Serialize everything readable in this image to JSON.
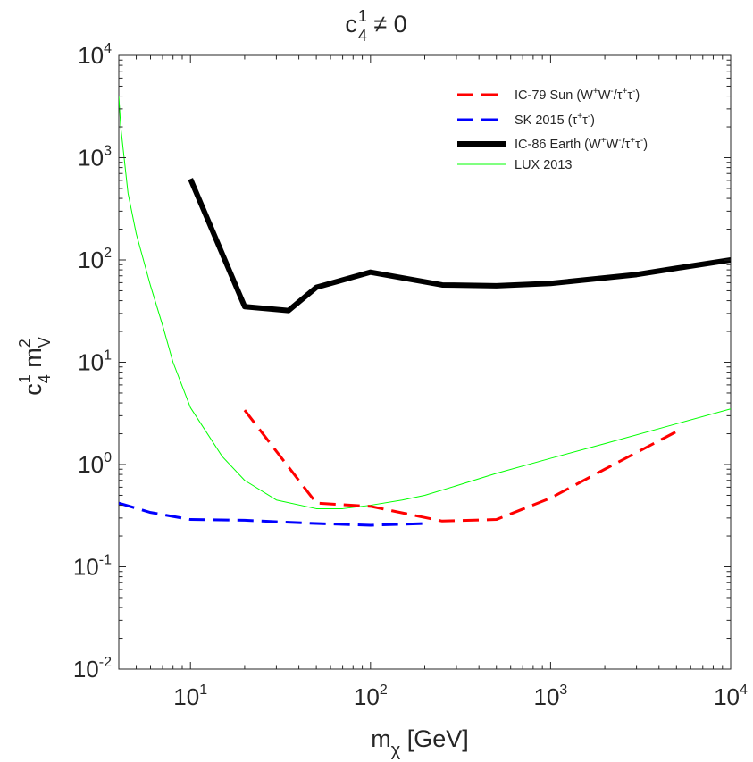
{
  "chart_data": {
    "type": "line",
    "title": {
      "base": "c",
      "sup": "1",
      "sub": "4",
      "rest": " ≠ 0"
    },
    "xlabel": {
      "base": "m",
      "sub": "χ",
      "rest": " [GeV]"
    },
    "ylabel": {
      "c": "c",
      "c_sup": "1",
      "c_sub": "4",
      "m": " m",
      "m_sup": "2",
      "m_sub": "V"
    },
    "xscale": "log",
    "yscale": "log",
    "xlim": [
      4,
      10000
    ],
    "ylim": [
      0.01,
      10000
    ],
    "xticks": [
      {
        "value": 10,
        "base": "10",
        "exp": "1"
      },
      {
        "value": 100,
        "base": "10",
        "exp": "2"
      },
      {
        "value": 1000,
        "base": "10",
        "exp": "3"
      },
      {
        "value": 10000,
        "base": "10",
        "exp": "4"
      }
    ],
    "yticks": [
      {
        "value": 0.01,
        "base": "10",
        "exp": "-2"
      },
      {
        "value": 0.1,
        "base": "10",
        "exp": "-1"
      },
      {
        "value": 1,
        "base": "10",
        "exp": "0"
      },
      {
        "value": 10,
        "base": "10",
        "exp": "1"
      },
      {
        "value": 100,
        "base": "10",
        "exp": "2"
      },
      {
        "value": 1000,
        "base": "10",
        "exp": "3"
      },
      {
        "value": 10000,
        "base": "10",
        "exp": "4"
      }
    ],
    "grid": false,
    "legend_position": "top-right",
    "series": [
      {
        "id": "ic79",
        "name": "IC-79 Sun (W⁺W⁻/τ⁺τ⁻)",
        "legend": [
          {
            "t": "IC-79 Sun (W"
          },
          {
            "t": "+",
            "sup": true
          },
          {
            "t": "W"
          },
          {
            "t": "-",
            "sup": true
          },
          {
            "t": "/τ"
          },
          {
            "t": "+",
            "sup": true
          },
          {
            "t": "τ"
          },
          {
            "t": "-",
            "sup": true
          },
          {
            "t": ")"
          }
        ],
        "color": "#ff0000",
        "style": "dashed",
        "width": 3,
        "x": [
          20,
          50,
          100,
          250,
          500,
          1000,
          2000,
          5000
        ],
        "y": [
          3.4,
          0.42,
          0.39,
          0.28,
          0.29,
          0.47,
          0.9,
          2.1
        ]
      },
      {
        "id": "sk2015",
        "name": "SK 2015 (τ⁺τ⁻)",
        "legend": [
          {
            "t": "SK 2015 (τ"
          },
          {
            "t": "+",
            "sup": true
          },
          {
            "t": "τ"
          },
          {
            "t": "-",
            "sup": true
          },
          {
            "t": ")"
          }
        ],
        "color": "#0000ff",
        "style": "dashed",
        "width": 3,
        "x": [
          4,
          6,
          10,
          20,
          50,
          100,
          200
        ],
        "y": [
          0.42,
          0.34,
          0.29,
          0.285,
          0.265,
          0.255,
          0.265
        ]
      },
      {
        "id": "ic86",
        "name": "IC-86 Earth (W⁺W⁻/τ⁺τ⁻)",
        "legend": [
          {
            "t": "IC-86 Earth (W"
          },
          {
            "t": "+",
            "sup": true
          },
          {
            "t": "W"
          },
          {
            "t": "-",
            "sup": true
          },
          {
            "t": "/τ"
          },
          {
            "t": "+",
            "sup": true
          },
          {
            "t": "τ"
          },
          {
            "t": "-",
            "sup": true
          },
          {
            "t": ")"
          }
        ],
        "color": "#000000",
        "style": "solid",
        "width": 6,
        "x": [
          10,
          20,
          35,
          50,
          100,
          250,
          500,
          1000,
          3000,
          5000,
          10000
        ],
        "y": [
          620,
          35,
          32,
          54,
          76,
          57,
          56,
          59,
          72,
          83,
          100
        ]
      },
      {
        "id": "lux2013",
        "name": "LUX 2013",
        "legend": [
          {
            "t": "LUX 2013"
          }
        ],
        "color": "#00ff00",
        "style": "solid",
        "width": 1,
        "x": [
          4,
          4.1,
          4.5,
          5,
          6,
          7,
          8,
          10,
          15,
          20,
          30,
          50,
          70,
          100,
          150,
          200,
          300,
          500,
          1000,
          2000,
          5000,
          10000
        ],
        "y": [
          4000,
          2000,
          450,
          180,
          56,
          23,
          10,
          3.6,
          1.2,
          0.7,
          0.45,
          0.37,
          0.37,
          0.4,
          0.45,
          0.5,
          0.62,
          0.82,
          1.15,
          1.6,
          2.5,
          3.5
        ]
      }
    ]
  }
}
